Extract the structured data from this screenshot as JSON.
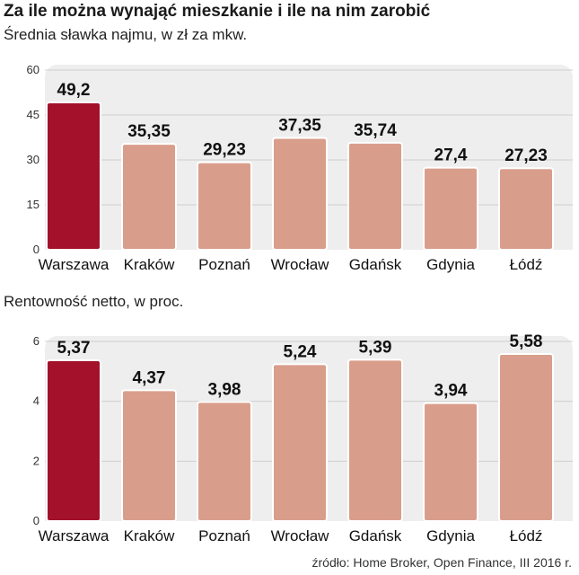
{
  "header": {
    "title": "Za ile można wynająć mieszkanie i ile na nim zarobić"
  },
  "source": "źródło: Home Broker, Open Finance, III 2016 r.",
  "colors": {
    "highlight_bar": "#a3122a",
    "bar": "#d99e8b",
    "bar_stroke": "#ffffff",
    "panel_bg": "#eeeeee",
    "grid": "#cfcfcf",
    "axis_text": "#333333"
  },
  "chart_data": [
    {
      "type": "bar",
      "title": "Średnia sławka najmu, w zł za mkw.",
      "categories": [
        "Warszawa",
        "Kraków",
        "Poznań",
        "Wrocław",
        "Gdańsk",
        "Gdynia",
        "Łódź"
      ],
      "values": [
        49.2,
        35.35,
        29.23,
        37.35,
        35.74,
        27.4,
        27.23
      ],
      "value_labels": [
        "49,2",
        "35,35",
        "29,23",
        "37,35",
        "35,74",
        "27,4",
        "27,23"
      ],
      "yticks": [
        "0",
        "15",
        "30",
        "45",
        "60"
      ],
      "ylim": [
        0,
        60
      ],
      "highlight_index": 0,
      "grid": true
    },
    {
      "type": "bar",
      "title": "Rentowność netto, w proc.",
      "categories": [
        "Warszawa",
        "Kraków",
        "Poznań",
        "Wrocław",
        "Gdańsk",
        "Gdynia",
        "Łódź"
      ],
      "values": [
        5.37,
        4.37,
        3.98,
        5.24,
        5.39,
        3.94,
        5.58
      ],
      "value_labels": [
        "5,37",
        "4,37",
        "3,98",
        "5,24",
        "5,39",
        "3,94",
        "5,58"
      ],
      "yticks": [
        "0",
        "2",
        "4",
        "6"
      ],
      "ylim": [
        0,
        6
      ],
      "highlight_index": 0,
      "grid": true
    }
  ]
}
